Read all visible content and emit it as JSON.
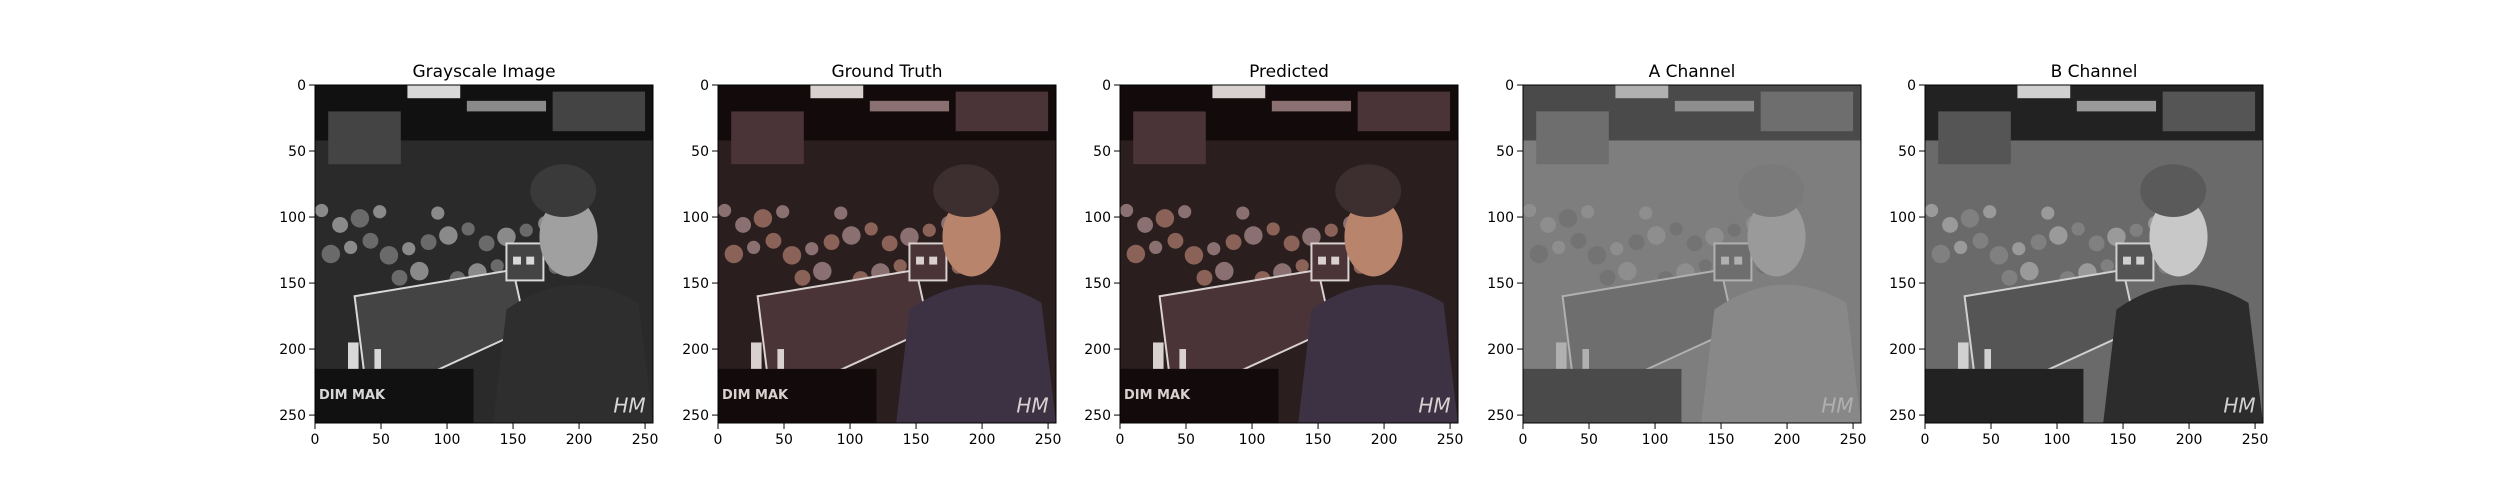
{
  "figure": {
    "axis_ticks": {
      "x": [
        0,
        50,
        100,
        150,
        200,
        250
      ],
      "y": [
        0,
        50,
        100,
        150,
        200,
        250
      ]
    },
    "axis_range": [
      0,
      256
    ],
    "panels": [
      {
        "title": "Grayscale Image",
        "palette": "gray",
        "watermark": "HM",
        "corner_text": "DIM MAK"
      },
      {
        "title": "Ground Truth",
        "palette": "color",
        "watermark": "HM",
        "corner_text": "DIM MAK"
      },
      {
        "title": "Predicted",
        "palette": "color",
        "watermark": "HM",
        "corner_text": "DIM MAK"
      },
      {
        "title": "A Channel",
        "palette": "achan",
        "watermark": "HM"
      },
      {
        "title": "B Channel",
        "palette": "bchan",
        "watermark": "HM"
      }
    ]
  }
}
